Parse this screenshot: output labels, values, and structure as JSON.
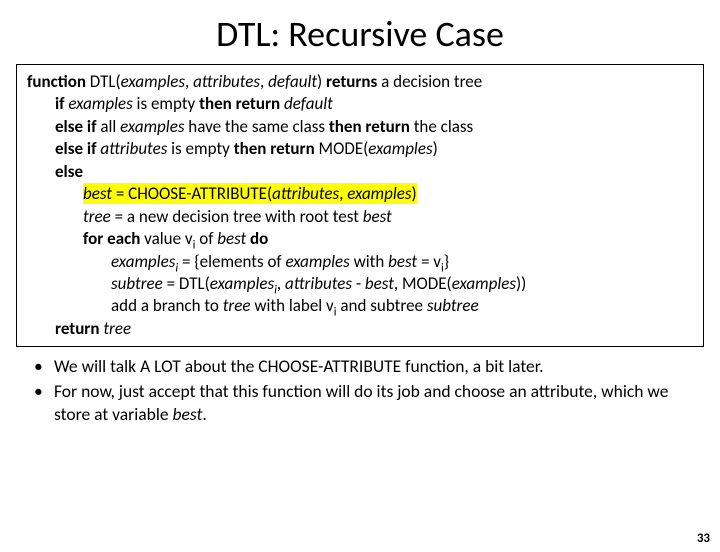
{
  "title": "DTL: Recursive Case",
  "code": {
    "l1_pre": "function",
    "l1_sig": " DTL(",
    "l1_arg1": "examples",
    "l1_c1": ", ",
    "l1_arg2": "attributes",
    "l1_c2": ", ",
    "l1_arg3": "default",
    "l1_paren": ") ",
    "l1_ret": "returns",
    "l1_post": " a decision tree",
    "l2_if": "if ",
    "l2_ex": "examples",
    "l2_mid": " is empty ",
    "l2_then": "then return ",
    "l2_def": "default",
    "l3_elseif": "else if",
    "l3_mid1": " all ",
    "l3_ex": "examples",
    "l3_mid2": " have the same class ",
    "l3_then": "then return",
    "l3_post": " the class",
    "l4_elseif": "else if ",
    "l4_attr": "attributes",
    "l4_mid": " is empty ",
    "l4_then": "then return",
    "l4_mode": " MODE(",
    "l4_ex": "examples",
    "l4_close": ")",
    "l5_else": "else",
    "l6_best": "best",
    "l6_eq": " = CHOOSE-ATTRIBUTE(",
    "l6_attr": "attributes",
    "l6_c": ", ",
    "l6_ex": "examples",
    "l6_close": ")",
    "l7_tree": "tree",
    "l7_mid": " = a new decision tree with root test ",
    "l7_best": "best",
    "l8_for": "for each",
    "l8_mid1": " value v",
    "l8_sub": "i",
    "l8_mid2": " of ",
    "l8_best": "best",
    "l8_do": " do",
    "l9_ex": "examples",
    "l9_sub": "i",
    "l9_mid1": " = {elements of ",
    "l9_ex2": "examples",
    "l9_mid2": " with ",
    "l9_best": "best",
    "l9_mid3": " = v",
    "l9_sub2": "i",
    "l9_close": "}",
    "l10_sub": "subtree",
    "l10_eq": " = DTL(",
    "l10_ex": "examples",
    "l10_subi": "i",
    "l10_c1": ", ",
    "l10_attr": "attributes",
    "l10_minus": " - ",
    "l10_best": "best",
    "l10_c2": ", MODE(",
    "l10_ex2": "examples",
    "l10_close": "))",
    "l11_pre": "add a branch to ",
    "l11_tree": "tree",
    "l11_mid1": " with label v",
    "l11_sub": "i",
    "l11_mid2": " and subtree ",
    "l11_sub2": "subtree",
    "l12_ret": "return ",
    "l12_tree": "tree"
  },
  "bullets": {
    "b1": "We will talk A LOT about the CHOOSE-ATTRIBUTE function, a bit later.",
    "b2a": "For now, just accept that this function will do its job and choose an attribute, which we store at variable ",
    "b2b": "best",
    "b2c": "."
  },
  "pageNumber": "33"
}
